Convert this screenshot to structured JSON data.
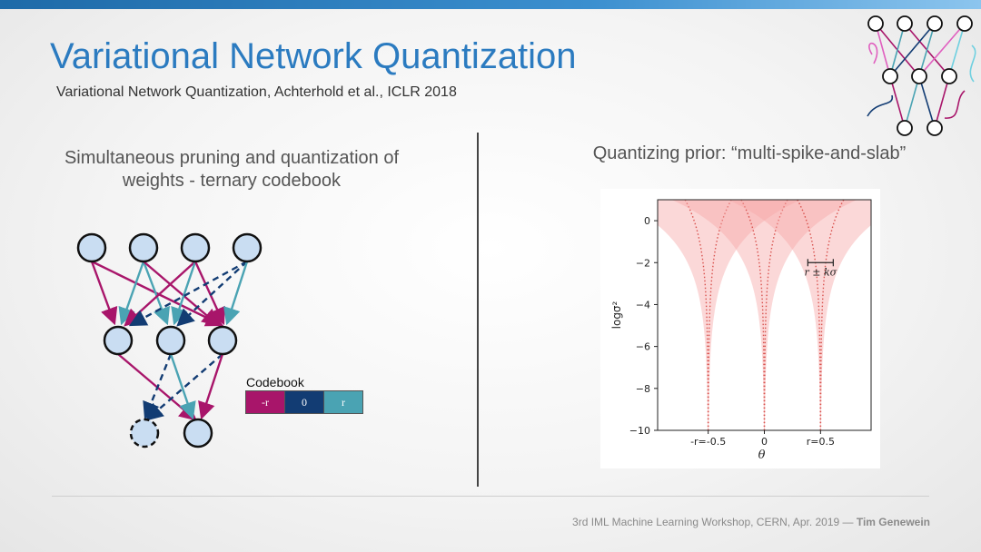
{
  "header": {
    "title": "Variational Network Quantization",
    "subtitle": "Variational Network Quantization, Achterhold et al., ICLR 2018"
  },
  "left": {
    "heading_line1": "Simultaneous pruning and quantization of",
    "heading_line2": "weights - ternary codebook",
    "codebook": {
      "label": "Codebook",
      "cells": [
        {
          "text": "-r",
          "color": "#a8156a"
        },
        {
          "text": "0",
          "color": "#123c73"
        },
        {
          "text": "r",
          "color": "#4aa3b3"
        }
      ]
    }
  },
  "right": {
    "heading": "Quantizing prior: “multi-spike-and-slab”"
  },
  "chart_data": {
    "type": "area",
    "title": "",
    "xlabel": "θ",
    "ylabel": "logσ²",
    "xlim": [
      -0.95,
      0.95
    ],
    "ylim": [
      -10,
      1
    ],
    "yticks": [
      0,
      -2,
      -4,
      -6,
      -8,
      -10
    ],
    "ytick_labels": [
      "0",
      "−2",
      "−4",
      "−6",
      "−8",
      "−10"
    ],
    "xticks": [
      -0.5,
      0,
      0.5
    ],
    "xtick_labels": [
      "-r=-0.5",
      "0",
      "r=0.5"
    ],
    "spike_centers": [
      -0.5,
      0,
      0.5
    ],
    "annotation": "r ± kσ",
    "annotation_at": {
      "theta": 0.5,
      "logvar": -2
    },
    "shade_color": "#f7a9a9",
    "line_color": "#d9534f"
  },
  "footer": {
    "text": "3rd IML Machine Learning Workshop, CERN, Apr. 2019 — ",
    "author": "Tim Genewein"
  }
}
